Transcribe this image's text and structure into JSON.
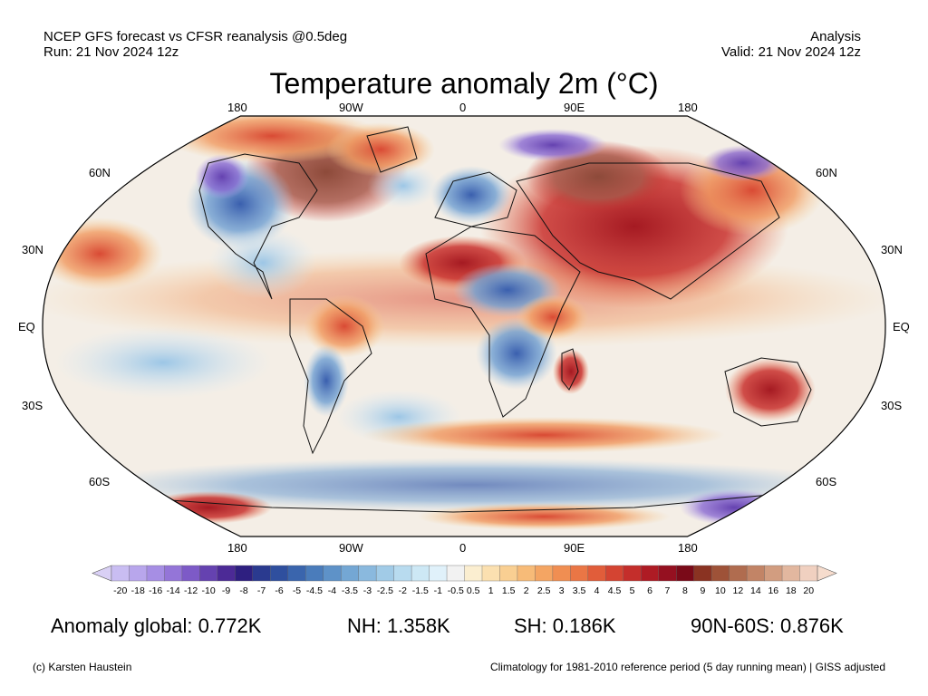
{
  "header": {
    "left_line1": "NCEP GFS forecast vs CFSR reanalysis @0.5deg",
    "left_line2": "Run: 21 Nov 2024 12z",
    "right_line1": "Analysis",
    "right_line2": "Valid: 21 Nov 2024 12z"
  },
  "title": "Temperature anomaly 2m (°C)",
  "map": {
    "projection": "robinson",
    "top_lon_labels": [
      "180",
      "90W",
      "0",
      "90E",
      "180"
    ],
    "bottom_lon_labels": [
      "180",
      "90W",
      "0",
      "90E",
      "180"
    ],
    "left_lat_labels": [
      "60N",
      "30N",
      "EQ",
      "30S",
      "60S"
    ],
    "right_lat_labels": [
      "60N",
      "30N",
      "EQ",
      "30S",
      "60S"
    ]
  },
  "colorbar": {
    "labels": [
      "-20",
      "-18",
      "-16",
      "-14",
      "-12",
      "-10",
      "-9",
      "-8",
      "-7",
      "-6",
      "-5",
      "-4.5",
      "-4",
      "-3.5",
      "-3",
      "-2.5",
      "-2",
      "-1.5",
      "-1",
      "-0.5",
      "0.5",
      "1",
      "1.5",
      "2",
      "2.5",
      "3",
      "3.5",
      "4",
      "4.5",
      "5",
      "6",
      "7",
      "8",
      "9",
      "10",
      "12",
      "14",
      "16",
      "18",
      "20"
    ],
    "colors": [
      "#c9bdf2",
      "#b8a6ec",
      "#a68ee4",
      "#9475d8",
      "#7d5ac7",
      "#6542b0",
      "#4c2a96",
      "#2e1f80",
      "#2a3a8f",
      "#2f4f9e",
      "#3a65ad",
      "#4a7cbb",
      "#5e92c8",
      "#74a7d4",
      "#8ab9de",
      "#a1cbe7",
      "#b8dbef",
      "#cde8f5",
      "#e0f1fa",
      "#f2f2f2",
      "#fbeed0",
      "#fbe0b0",
      "#f9cf92",
      "#f7bb78",
      "#f4a563",
      "#f08e52",
      "#ea7645",
      "#e15d3a",
      "#d44432",
      "#c42e2b",
      "#ae1b24",
      "#951020",
      "#7a0a18",
      "#8a3322",
      "#9e5238",
      "#b06c4f",
      "#c28466",
      "#d29d80",
      "#e2b79f",
      "#f0d0c0"
    ],
    "left_arrow_color": "#d9d0f5",
    "right_arrow_color": "#f6dccd"
  },
  "stats": {
    "global": "Anomaly global: 0.772K",
    "nh": "NH: 1.358K",
    "sh": "SH: 0.186K",
    "polar": "90N-60S: 0.876K"
  },
  "footer": {
    "credit": "(c) Karsten Haustein",
    "note": "Climatology for 1981-2010 reference period (5 day running mean) | GISS adjusted"
  }
}
